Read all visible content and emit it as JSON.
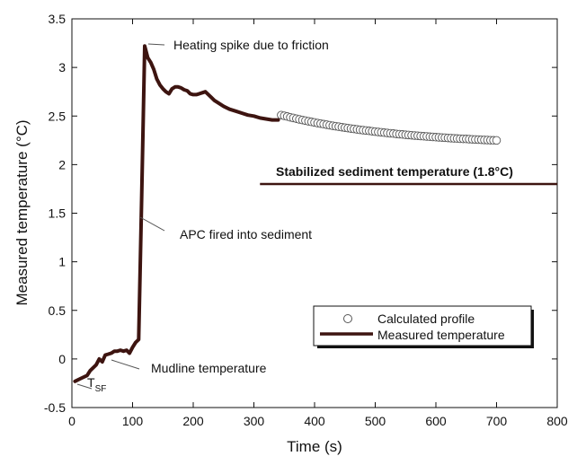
{
  "chart_data": {
    "type": "line",
    "xlabel": "Time (s)",
    "ylabel": "Measured temperature (°C)",
    "xlim": [
      0,
      800
    ],
    "ylim": [
      -0.5,
      3.5
    ],
    "x_ticks": [
      0,
      100,
      200,
      300,
      400,
      500,
      600,
      700,
      800
    ],
    "y_ticks": [
      "-0.5",
      "0",
      "0.5",
      "1",
      "1.5",
      "2",
      "2.5",
      "3",
      "3.5"
    ],
    "grid": false,
    "legend_position": "lower-right",
    "series": [
      {
        "name": "Measured temperature",
        "style": "thick-line",
        "color": "#3d1410",
        "x": [
          5,
          15,
          25,
          30,
          40,
          45,
          50,
          55,
          60,
          65,
          70,
          75,
          80,
          85,
          90,
          95,
          100,
          105,
          110,
          115,
          120,
          125,
          130,
          135,
          140,
          145,
          150,
          155,
          160,
          165,
          170,
          175,
          180,
          185,
          190,
          195,
          200,
          205,
          210,
          215,
          220,
          225,
          230,
          235,
          240,
          250,
          260,
          270,
          280,
          290,
          300,
          310,
          320,
          330,
          340
        ],
        "y": [
          -0.23,
          -0.2,
          -0.17,
          -0.12,
          -0.06,
          0.0,
          -0.03,
          0.04,
          0.05,
          0.06,
          0.08,
          0.08,
          0.09,
          0.08,
          0.09,
          0.06,
          0.12,
          0.17,
          0.2,
          1.65,
          3.22,
          3.1,
          3.05,
          2.98,
          2.88,
          2.82,
          2.78,
          2.75,
          2.73,
          2.78,
          2.8,
          2.8,
          2.79,
          2.77,
          2.76,
          2.73,
          2.72,
          2.72,
          2.73,
          2.74,
          2.75,
          2.72,
          2.69,
          2.66,
          2.64,
          2.6,
          2.57,
          2.55,
          2.53,
          2.51,
          2.5,
          2.48,
          2.47,
          2.46,
          2.46
        ]
      },
      {
        "name": "Calculated  profile",
        "style": "open-circles",
        "color": "#555555",
        "x": [
          345,
          350,
          355,
          360,
          365,
          370,
          375,
          380,
          385,
          390,
          395,
          400,
          405,
          410,
          415,
          420,
          425,
          430,
          435,
          440,
          445,
          450,
          455,
          460,
          465,
          470,
          475,
          480,
          485,
          490,
          495,
          500,
          505,
          510,
          515,
          520,
          525,
          530,
          535,
          540,
          545,
          550,
          555,
          560,
          565,
          570,
          575,
          580,
          585,
          590,
          595,
          600,
          605,
          610,
          615,
          620,
          625,
          630,
          635,
          640,
          645,
          650,
          655,
          660,
          665,
          670,
          675,
          680,
          685,
          690,
          695,
          700
        ],
        "y_start": 2.51,
        "y_end": 2.2
      }
    ],
    "reference_line": {
      "label": "Stabilized sediment temperature (1.8°C)",
      "y": 1.8,
      "x_start": 310,
      "x_end": 800,
      "color": "#3d1410"
    },
    "annotations": {
      "spike": "Heating spike due to friction",
      "apc": "APC fired into sediment",
      "mudline": "Mudline temperature",
      "tsf_main": "T",
      "tsf_sub": "SF"
    },
    "legend": {
      "calculated": "Calculated  profile",
      "measured": "Measured  temperature"
    }
  }
}
